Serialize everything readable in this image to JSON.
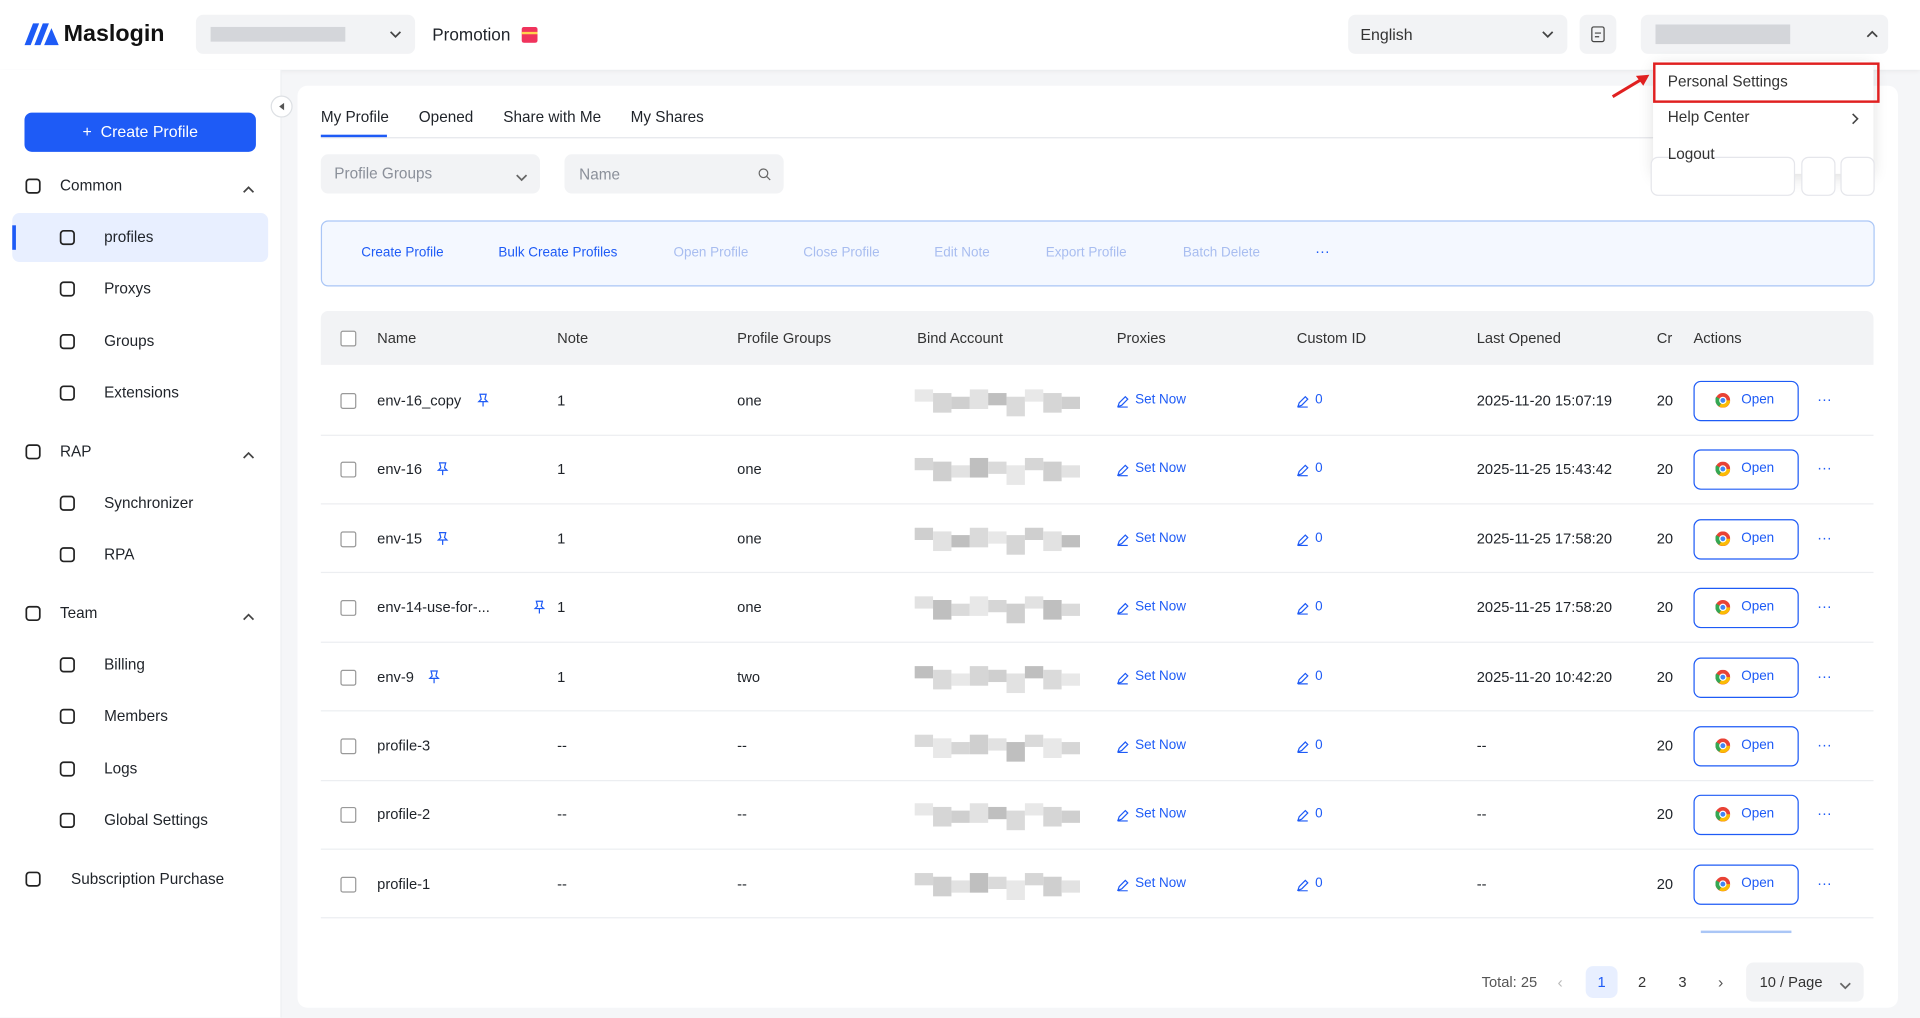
{
  "header": {
    "brand": "Maslogin",
    "promotion": "Promotion",
    "language": "English"
  },
  "user_menu": {
    "items": [
      "Personal Settings",
      "Help Center",
      "Logout"
    ]
  },
  "sidebar": {
    "create_button": "Create Profile",
    "sections": [
      {
        "title": "Common",
        "items": [
          "profiles",
          "Proxys",
          "Groups",
          "Extensions"
        ]
      },
      {
        "title": "RAP",
        "items": [
          "Synchronizer",
          "RPA"
        ]
      },
      {
        "title": "Team",
        "items": [
          "Billing",
          "Members",
          "Logs",
          "Global Settings"
        ]
      }
    ],
    "footer_item": "Subscription Purchase"
  },
  "tabs": [
    "My Profile",
    "Opened",
    "Share with Me",
    "My Shares"
  ],
  "filters": {
    "group_placeholder": "Profile Groups",
    "name_placeholder": "Name"
  },
  "toolbar": [
    {
      "label": "Create Profile",
      "enabled": true
    },
    {
      "label": "Bulk Create Profiles",
      "enabled": true
    },
    {
      "label": "Open Profile",
      "enabled": false
    },
    {
      "label": "Close Profile",
      "enabled": false
    },
    {
      "label": "Edit Note",
      "enabled": false
    },
    {
      "label": "Export Profile",
      "enabled": false
    },
    {
      "label": "Batch Delete",
      "enabled": false
    }
  ],
  "table": {
    "columns": [
      "Name",
      "Note",
      "Profile Groups",
      "Bind Account",
      "Proxies",
      "Custom ID",
      "Last Opened",
      "Cr",
      "Actions"
    ],
    "rows": [
      {
        "name": "env-16_copy",
        "pinned": true,
        "note": "1",
        "group": "one",
        "proxy": "Set Now",
        "custom_id": "0",
        "last_opened": "2025-11-20 15:07:19",
        "created": "20",
        "action": "Open"
      },
      {
        "name": "env-16",
        "pinned": true,
        "note": "1",
        "group": "one",
        "proxy": "Set Now",
        "custom_id": "0",
        "last_opened": "2025-11-25 15:43:42",
        "created": "20",
        "action": "Open"
      },
      {
        "name": "env-15",
        "pinned": true,
        "note": "1",
        "group": "one",
        "proxy": "Set Now",
        "custom_id": "0",
        "last_opened": "2025-11-25 17:58:20",
        "created": "20",
        "action": "Open"
      },
      {
        "name": "env-14-use-for-...",
        "pinned": true,
        "note": "1",
        "group": "one",
        "proxy": "Set Now",
        "custom_id": "0",
        "last_opened": "2025-11-25 17:58:20",
        "created": "20",
        "action": "Open"
      },
      {
        "name": "env-9",
        "pinned": true,
        "note": "1",
        "group": "two",
        "proxy": "Set Now",
        "custom_id": "0",
        "last_opened": "2025-11-20 10:42:20",
        "created": "20",
        "action": "Open"
      },
      {
        "name": "profile-3",
        "pinned": false,
        "note": "--",
        "group": "--",
        "proxy": "Set Now",
        "custom_id": "0",
        "last_opened": "--",
        "created": "20",
        "action": "Open"
      },
      {
        "name": "profile-2",
        "pinned": false,
        "note": "--",
        "group": "--",
        "proxy": "Set Now",
        "custom_id": "0",
        "last_opened": "--",
        "created": "20",
        "action": "Open"
      },
      {
        "name": "profile-1",
        "pinned": false,
        "note": "--",
        "group": "--",
        "proxy": "Set Now",
        "custom_id": "0",
        "last_opened": "--",
        "created": "20",
        "action": "Open"
      }
    ]
  },
  "pagination": {
    "total": "Total: 25",
    "pages": [
      1,
      2,
      3
    ],
    "current": 1,
    "page_size": "10 / Page"
  }
}
